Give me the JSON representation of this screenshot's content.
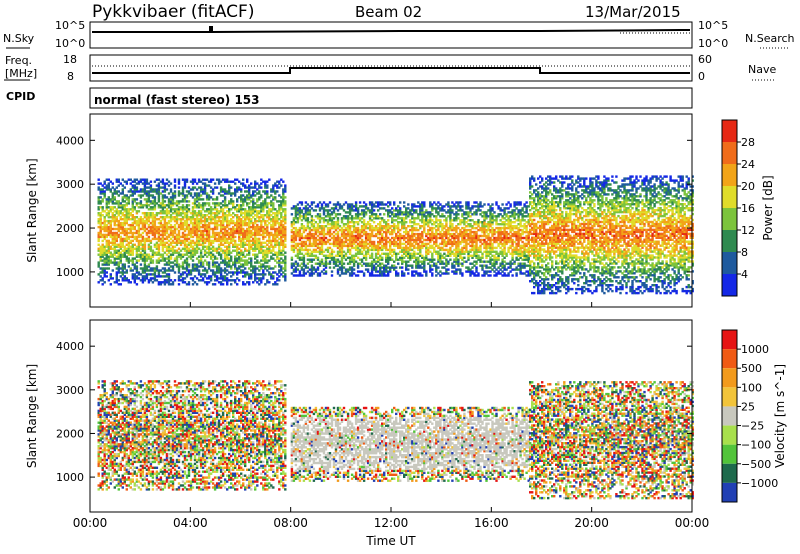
{
  "header": {
    "station": "Pykkvibaer (fitACF)",
    "beam": "Beam 02",
    "date": "13/Mar/2015"
  },
  "top_panels": {
    "nsky_label": "N.Sky",
    "nsky_ticks": [
      "10^5",
      "10^0"
    ],
    "nsearch_label": "N.Search",
    "nsearch_ticks": [
      "10^5",
      "10^0"
    ],
    "freq_label_1": "Freq.",
    "freq_label_2": "[MHz]",
    "freq_ticks": [
      "18",
      "8"
    ],
    "nave_label": "Nave",
    "nave_ticks": [
      "60",
      "0"
    ],
    "cpid_label": "CPID",
    "cpid_value": "normal (fast stereo) 153"
  },
  "chart_data": [
    {
      "type": "heatmap",
      "title": "",
      "xlabel": "Time UT",
      "ylabel": "Slant Range [km]",
      "xlim_hours": [
        0,
        24
      ],
      "ylim": [
        200,
        4600
      ],
      "y_ticks": [
        1000,
        2000,
        3000,
        4000
      ],
      "x_ticks": [
        "00:00",
        "04:00",
        "08:00",
        "12:00",
        "16:00",
        "20:00",
        "00:00"
      ],
      "colorbar": {
        "label": "Power [dB]",
        "ticks": [
          4,
          8,
          12,
          16,
          20,
          24,
          28
        ],
        "colors": [
          "#1428e6",
          "#1e5a9e",
          "#2f8a50",
          "#7cc43c",
          "#e0dc2a",
          "#f2a418",
          "#f06c1a",
          "#e62814"
        ]
      },
      "echo_regions_km": [
        {
          "t_start": 0.3,
          "t_end": 7.8,
          "r_low": 700,
          "r_high": 3100,
          "peak_db": 26
        },
        {
          "t_start": 8.0,
          "t_end": 17.5,
          "r_low": 900,
          "r_high": 2600,
          "peak_db": 28
        },
        {
          "t_start": 17.5,
          "t_end": 24.0,
          "r_low": 500,
          "r_high": 3200,
          "peak_db": 28
        }
      ]
    },
    {
      "type": "heatmap",
      "title": "",
      "xlabel": "Time UT",
      "ylabel": "Slant Range [km]",
      "xlim_hours": [
        0,
        24
      ],
      "ylim": [
        200,
        4600
      ],
      "y_ticks": [
        1000,
        2000,
        3000,
        4000
      ],
      "x_ticks": [
        "00:00",
        "04:00",
        "08:00",
        "12:00",
        "16:00",
        "20:00",
        "00:00"
      ],
      "colorbar": {
        "label": "Velocity [m s^-1]",
        "ticks": [
          "1000",
          "500",
          "100",
          "25",
          "−25",
          "−100",
          "−500",
          "−1000"
        ],
        "colors": [
          "#2140b4",
          "#1e6a4c",
          "#52c43a",
          "#a8e04c",
          "#c8c8be",
          "#f2c43a",
          "#f29a1c",
          "#f05a14",
          "#e61414"
        ]
      },
      "echo_regions_km": [
        {
          "t_start": 0.3,
          "t_end": 7.8,
          "r_low": 700,
          "r_high": 3200,
          "dominant": "mixed"
        },
        {
          "t_start": 8.0,
          "t_end": 17.5,
          "r_low": 900,
          "r_high": 2600,
          "dominant": "ground scatter"
        },
        {
          "t_start": 17.5,
          "t_end": 24.0,
          "r_low": 500,
          "r_high": 3200,
          "dominant": "mixed"
        }
      ]
    }
  ]
}
